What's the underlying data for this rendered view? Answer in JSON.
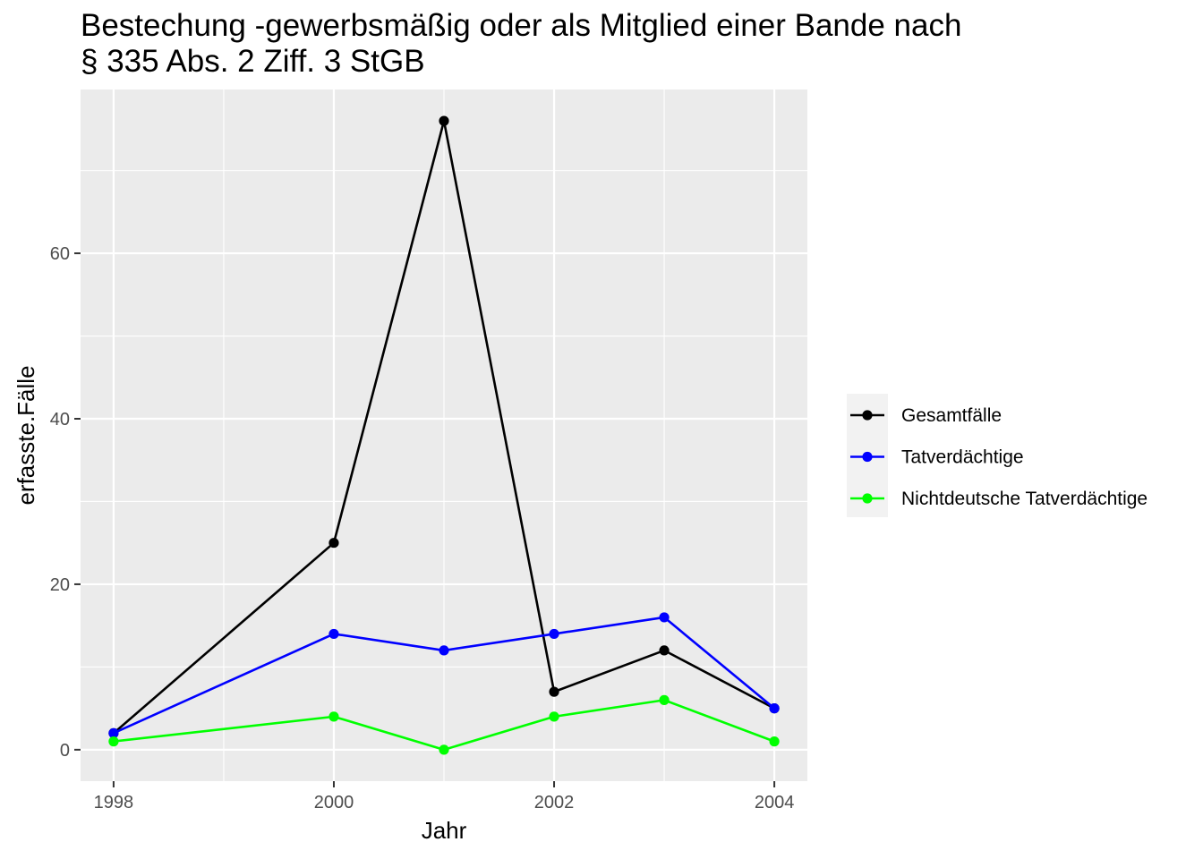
{
  "chart_data": {
    "type": "line",
    "title": "Bestechung -gewerbsmäßig oder als Mitglied einer Bande nach",
    "subtitle": "§ 335 Abs. 2 Ziff. 3 StGB",
    "xlabel": "Jahr",
    "ylabel": "erfasste.Fälle",
    "x": [
      1998,
      2000,
      2001,
      2002,
      2003,
      2004
    ],
    "xlim": [
      1997.7,
      2004.3
    ],
    "ylim": [
      -3.8,
      79.8
    ],
    "xticks": [
      1998,
      2000,
      2002,
      2004
    ],
    "yticks": [
      0,
      20,
      40,
      60
    ],
    "grid": true,
    "legend_position": "right",
    "series": [
      {
        "name": "Gesamtfälle",
        "color": "#000000",
        "values": [
          2,
          25,
          76,
          7,
          12,
          5
        ]
      },
      {
        "name": "Tatverdächtige",
        "color": "#0000ff",
        "values": [
          2,
          14,
          12,
          14,
          16,
          5
        ]
      },
      {
        "name": "Nichtdeutsche Tatverdächtige",
        "color": "#00ff00",
        "values": [
          1,
          4,
          0,
          4,
          6,
          1
        ]
      }
    ]
  }
}
